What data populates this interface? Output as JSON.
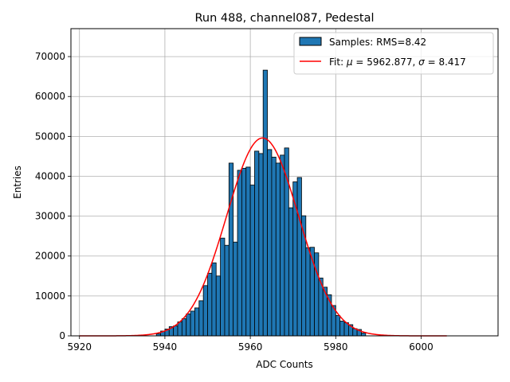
{
  "chart_data": {
    "type": "bar",
    "title": "Run 488, channel087, Pedestal",
    "xlabel": "ADC Counts",
    "ylabel": "Entries",
    "xlim": [
      5918,
      6018
    ],
    "ylim": [
      0,
      77000
    ],
    "xticks": [
      5920,
      5940,
      5960,
      5980,
      6000
    ],
    "yticks": [
      0,
      10000,
      20000,
      30000,
      40000,
      50000,
      60000,
      70000
    ],
    "grid": true,
    "legend_position": "top-right",
    "bar_color": "#1f77b4",
    "fit_color": "#ff0000",
    "legend": {
      "samples_label": "Samples: RMS=8.42",
      "fit_label_parts": [
        "Fit: ",
        "μ",
        " = 5962.877, ",
        "σ",
        " = 8.417"
      ]
    },
    "histogram": {
      "bin_start": 5938,
      "bin_width": 1,
      "counts": [
        500,
        1200,
        1700,
        2300,
        2500,
        3500,
        4300,
        5500,
        6200,
        7000,
        8800,
        12600,
        15700,
        18300,
        15000,
        24500,
        22700,
        43300,
        23500,
        41500,
        42000,
        42300,
        37800,
        46300,
        45700,
        66600,
        46700,
        44800,
        43300,
        45300,
        47100,
        32100,
        38600,
        39700,
        30100,
        22100,
        22200,
        20800,
        14500,
        12200,
        10300,
        7600,
        5100,
        3700,
        3300,
        2800,
        1800,
        1600,
        700
      ]
    },
    "fit": {
      "mu": 5962.877,
      "sigma": 8.417,
      "amplitude": 49600,
      "x_range": [
        5920,
        6006
      ]
    }
  }
}
